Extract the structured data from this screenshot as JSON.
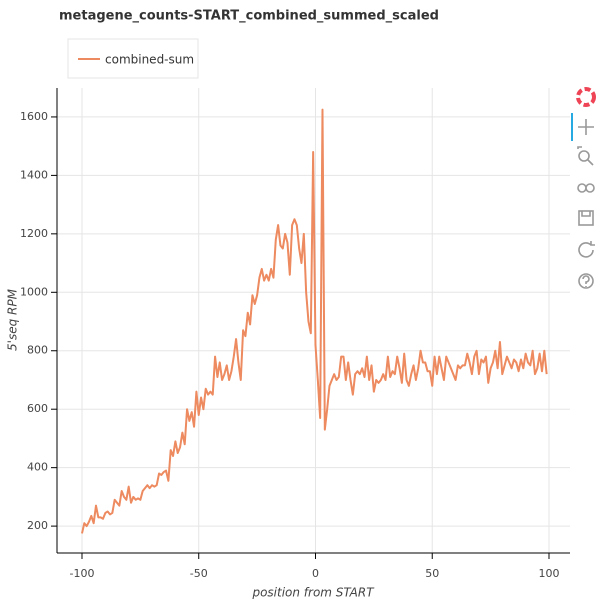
{
  "chart_data": {
    "type": "line",
    "title": "metagene_counts-START_combined_summed_scaled",
    "x_label": "position from START",
    "y_label": "5'seq RPM",
    "x": [
      -100,
      -99,
      -98,
      -97,
      -96,
      -95,
      -94,
      -93,
      -92,
      -91,
      -90,
      -89,
      -88,
      -87,
      -86,
      -85,
      -84,
      -83,
      -82,
      -81,
      -80,
      -79,
      -78,
      -77,
      -76,
      -75,
      -74,
      -73,
      -72,
      -71,
      -70,
      -69,
      -68,
      -67,
      -66,
      -65,
      -64,
      -63,
      -62,
      -61,
      -60,
      -59,
      -58,
      -57,
      -56,
      -55,
      -54,
      -53,
      -52,
      -51,
      -50,
      -49,
      -48,
      -47,
      -46,
      -45,
      -44,
      -43,
      -42,
      -41,
      -40,
      -39,
      -38,
      -37,
      -36,
      -35,
      -34,
      -33,
      -32,
      -31,
      -30,
      -29,
      -28,
      -27,
      -26,
      -25,
      -24,
      -23,
      -22,
      -21,
      -20,
      -19,
      -18,
      -17,
      -16,
      -15,
      -14,
      -13,
      -12,
      -11,
      -10,
      -9,
      -8,
      -7,
      -6,
      -5,
      -4,
      -3,
      -2,
      -1,
      0,
      1,
      2,
      3,
      4,
      5,
      6,
      7,
      8,
      9,
      10,
      11,
      12,
      13,
      14,
      15,
      16,
      17,
      18,
      19,
      20,
      21,
      22,
      23,
      24,
      25,
      26,
      27,
      28,
      29,
      30,
      31,
      32,
      33,
      34,
      35,
      36,
      37,
      38,
      39,
      40,
      41,
      42,
      43,
      44,
      45,
      46,
      47,
      48,
      49,
      50,
      51,
      52,
      53,
      54,
      55,
      56,
      57,
      58,
      59,
      60,
      61,
      62,
      63,
      64,
      65,
      66,
      67,
      68,
      69,
      70,
      71,
      72,
      73,
      74,
      75,
      76,
      77,
      78,
      79,
      80,
      81,
      82,
      83,
      84,
      85,
      86,
      87,
      88,
      89,
      90,
      91,
      92,
      93,
      94,
      95,
      96,
      97,
      98,
      99
    ],
    "series": [
      {
        "name": "combined-sum",
        "color": "#ed8a5f",
        "values": [
          175,
          210,
          200,
          215,
          235,
          210,
          270,
          230,
          230,
          225,
          245,
          250,
          240,
          245,
          290,
          280,
          270,
          320,
          300,
          290,
          335,
          280,
          300,
          290,
          295,
          290,
          320,
          330,
          340,
          330,
          340,
          335,
          340,
          380,
          375,
          385,
          390,
          355,
          460,
          440,
          490,
          450,
          470,
          520,
          480,
          600,
          560,
          590,
          540,
          660,
          580,
          640,
          600,
          670,
          650,
          660,
          650,
          780,
          710,
          760,
          700,
          720,
          750,
          700,
          730,
          780,
          840,
          760,
          700,
          870,
          850,
          930,
          890,
          990,
          960,
          990,
          1050,
          1080,
          1040,
          1060,
          1040,
          1080,
          1050,
          1180,
          1230,
          1160,
          1150,
          1200,
          1170,
          1060,
          1230,
          1250,
          1230,
          1150,
          1100,
          1200,
          1000,
          900,
          860,
          1480,
          820,
          700,
          570,
          1625,
          530,
          600,
          680,
          700,
          720,
          700,
          710,
          780,
          780,
          700,
          760,
          700,
          650,
          720,
          730,
          720,
          740,
          710,
          780,
          700,
          750,
          660,
          700,
          690,
          700,
          720,
          700,
          780,
          710,
          730,
          720,
          780,
          740,
          690,
          790,
          700,
          680,
          720,
          750,
          700,
          740,
          800,
          760,
          760,
          730,
          730,
          680,
          780,
          720,
          780,
          740,
          700,
          780,
          760,
          740,
          720,
          700,
          750,
          740,
          750,
          750,
          790,
          760,
          720,
          780,
          800,
          720,
          770,
          760,
          780,
          690,
          740,
          760,
          800,
          740,
          830,
          720,
          750,
          780,
          760,
          740,
          770,
          760,
          730,
          770,
          740,
          790,
          760,
          750,
          800,
          720,
          740,
          790,
          730,
          800,
          720
        ]
      }
    ],
    "xlim": [
      -110.7,
      109
    ],
    "ylim": [
      108,
      1699
    ],
    "xticks": [
      -100,
      -50,
      0,
      50,
      100
    ],
    "yticks": [
      200,
      400,
      600,
      800,
      1000,
      1200,
      1400,
      1600
    ],
    "grid": true,
    "legend": "top-left"
  }
}
